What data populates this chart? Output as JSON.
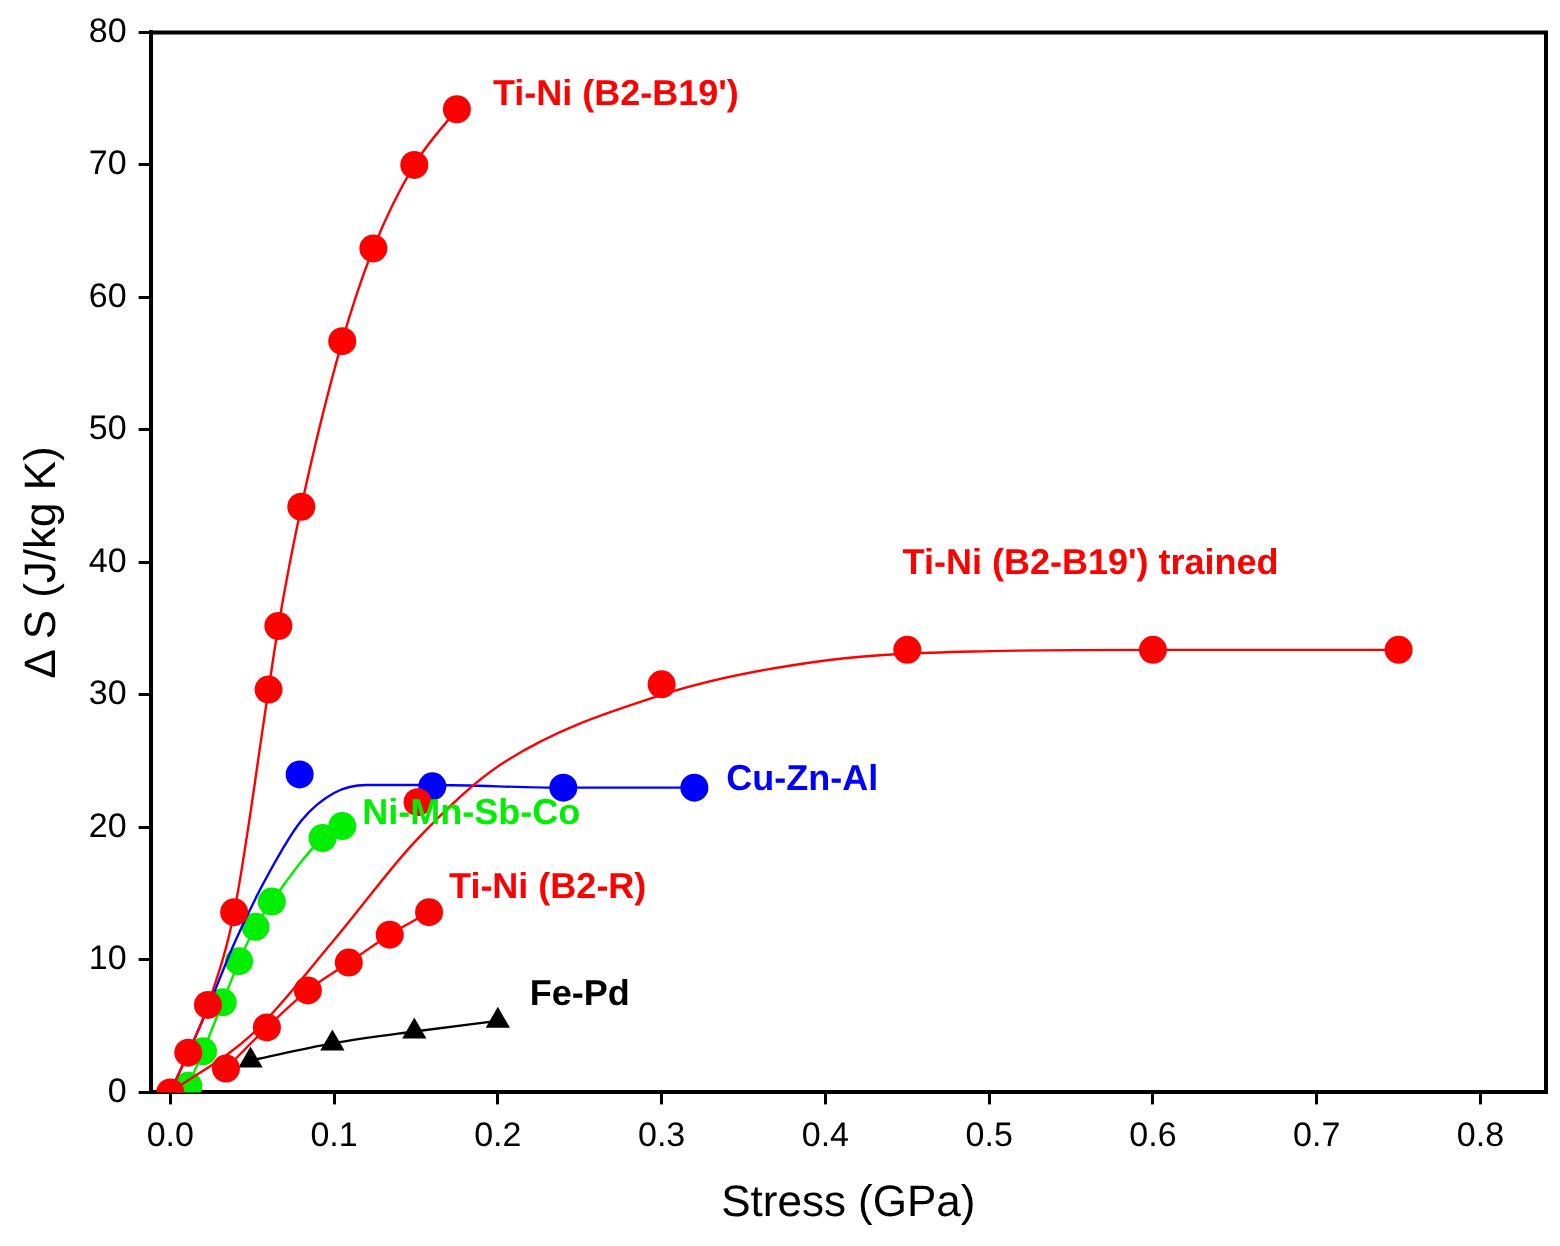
{
  "chart_data": {
    "type": "line",
    "xlabel": "Stress (GPa)",
    "ylabel": "Δ S (J/kg K)",
    "xlim": [
      -0.012,
      0.84
    ],
    "ylim": [
      0,
      80
    ],
    "xticks": [
      {
        "value": 0,
        "label": "0.0"
      },
      0.1,
      0.2,
      0.3,
      0.4,
      0.5,
      0.6,
      0.7,
      0.8
    ],
    "yticks": [
      0,
      10,
      20,
      30,
      40,
      50,
      60,
      70,
      80
    ],
    "grid": false,
    "legend": false,
    "series": [
      {
        "name": "Ti-Ni (B2-B19')",
        "type": "line",
        "marker": "circle",
        "color": "#ff0000",
        "x": [
          0,
          0.011,
          0.023,
          0.039,
          0.06,
          0.066,
          0.08,
          0.105,
          0.124,
          0.149,
          0.175
        ],
        "values": [
          0,
          3.0,
          6.6,
          13.6,
          30.4,
          35.2,
          44.2,
          56.7,
          63.7,
          70.0,
          74.2
        ]
      },
      {
        "name": "Ti-Ni (B2-B19') trained",
        "type": "scatter",
        "marker": "circle",
        "color": "#ff0000",
        "x": [
          0.151,
          0.3,
          0.45,
          0.6,
          0.75
        ],
        "values": [
          21.9,
          30.8,
          33.4,
          33.4,
          33.4
        ]
      },
      {
        "type": "line",
        "marker": "none",
        "color": "#ff0000",
        "x": [
          0,
          0.05,
          0.1,
          0.15,
          0.2,
          0.3,
          0.4,
          0.5,
          0.6,
          0.75
        ],
        "values": [
          0,
          4.4,
          11.5,
          19.0,
          24.6,
          30.0,
          32.6,
          33.3,
          33.4,
          33.4
        ]
      },
      {
        "name": "Cu-Zn-Al",
        "type": "scatter",
        "marker": "circle",
        "color": "#0000ff",
        "x": [
          0.079,
          0.16,
          0.24,
          0.32
        ],
        "values": [
          24.0,
          23.1,
          23.0,
          23.0
        ]
      },
      {
        "type": "line",
        "marker": "none",
        "color": "#0000ff",
        "x": [
          0,
          0.02,
          0.04,
          0.06,
          0.08,
          0.1,
          0.12,
          0.16,
          0.24,
          0.32
        ],
        "values": [
          0,
          5.5,
          11.5,
          16.5,
          20.5,
          22.6,
          23.2,
          23.2,
          23.0,
          23.0
        ]
      },
      {
        "name": "Ni-Mn-Sb-Co",
        "type": "line",
        "marker": "circle",
        "color": "#00ee00",
        "x": [
          0.011,
          0.02,
          0.032,
          0.042,
          0.052,
          0.062,
          0.093,
          0.105
        ],
        "values": [
          0.5,
          3.1,
          6.8,
          9.9,
          12.5,
          14.4,
          19.2,
          20.1
        ]
      },
      {
        "name": "Ti-Ni (B2-R)",
        "type": "line",
        "marker": "circle",
        "color": "#ff0000",
        "x": [
          0.034,
          0.059,
          0.084,
          0.109,
          0.134,
          0.158
        ],
        "values": [
          1.8,
          4.9,
          7.7,
          9.8,
          11.9,
          13.6
        ]
      },
      {
        "name": "Fe-Pd",
        "type": "line",
        "marker": "triangle",
        "color": "#000000",
        "x": [
          0.049,
          0.099,
          0.149,
          0.2
        ],
        "values": [
          2.4,
          3.7,
          4.6,
          5.4
        ]
      }
    ]
  }
}
